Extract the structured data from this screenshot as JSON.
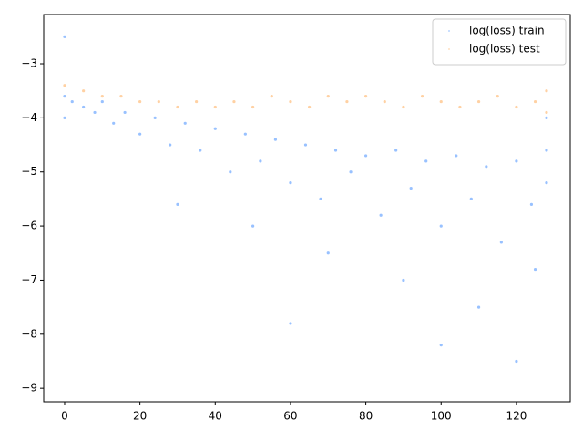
{
  "chart_data": {
    "type": "scatter",
    "xlim": [
      -5.56,
      134.3
    ],
    "ylim": [
      -9.25,
      -2.09
    ],
    "xticks": [
      0,
      20,
      40,
      60,
      80,
      100,
      120
    ],
    "yticks": [
      {
        "value": -9,
        "label": "−9"
      },
      {
        "value": -8,
        "label": "−8"
      },
      {
        "value": -7,
        "label": "−7"
      },
      {
        "value": -6,
        "label": "−6"
      },
      {
        "value": -5,
        "label": "−5"
      },
      {
        "value": -4,
        "label": "−4"
      },
      {
        "value": -3,
        "label": "−3"
      }
    ],
    "legend": "upper right",
    "series": [
      {
        "name": "log(loss) train",
        "color": "#1a75ff",
        "x": [
          0,
          0,
          0,
          2,
          5,
          8,
          10,
          13,
          16,
          20,
          24,
          28,
          32,
          36,
          40,
          44,
          48,
          52,
          56,
          60,
          64,
          68,
          72,
          76,
          80,
          84,
          88,
          92,
          96,
          100,
          104,
          108,
          112,
          116,
          120,
          124,
          128,
          128,
          128,
          30,
          50,
          70,
          90,
          110,
          120,
          60,
          100,
          125
        ],
        "values": [
          -2.5,
          -3.6,
          -4.0,
          -3.7,
          -3.8,
          -3.9,
          -3.7,
          -4.1,
          -3.9,
          -4.3,
          -4.0,
          -4.5,
          -4.1,
          -4.6,
          -4.2,
          -5.0,
          -4.3,
          -4.8,
          -4.4,
          -5.2,
          -4.5,
          -5.5,
          -4.6,
          -5.0,
          -4.7,
          -5.8,
          -4.6,
          -5.3,
          -4.8,
          -6.0,
          -4.7,
          -5.5,
          -4.9,
          -6.3,
          -4.8,
          -5.6,
          -4.6,
          -5.2,
          -4.0,
          -5.6,
          -6.0,
          -6.5,
          -7.0,
          -7.5,
          -8.5,
          -7.8,
          -8.2,
          -6.8
        ]
      },
      {
        "name": "log(loss) test",
        "color": "#ff9933",
        "x": [
          0,
          5,
          10,
          15,
          20,
          25,
          30,
          35,
          40,
          45,
          50,
          55,
          60,
          65,
          70,
          75,
          80,
          85,
          90,
          95,
          100,
          105,
          110,
          115,
          120,
          125,
          128,
          128
        ],
        "values": [
          -3.4,
          -3.5,
          -3.6,
          -3.6,
          -3.7,
          -3.7,
          -3.8,
          -3.7,
          -3.8,
          -3.7,
          -3.8,
          -3.6,
          -3.7,
          -3.8,
          -3.6,
          -3.7,
          -3.6,
          -3.7,
          -3.8,
          -3.6,
          -3.7,
          -3.8,
          -3.7,
          -3.6,
          -3.8,
          -3.7,
          -3.5,
          -3.9
        ]
      }
    ]
  }
}
